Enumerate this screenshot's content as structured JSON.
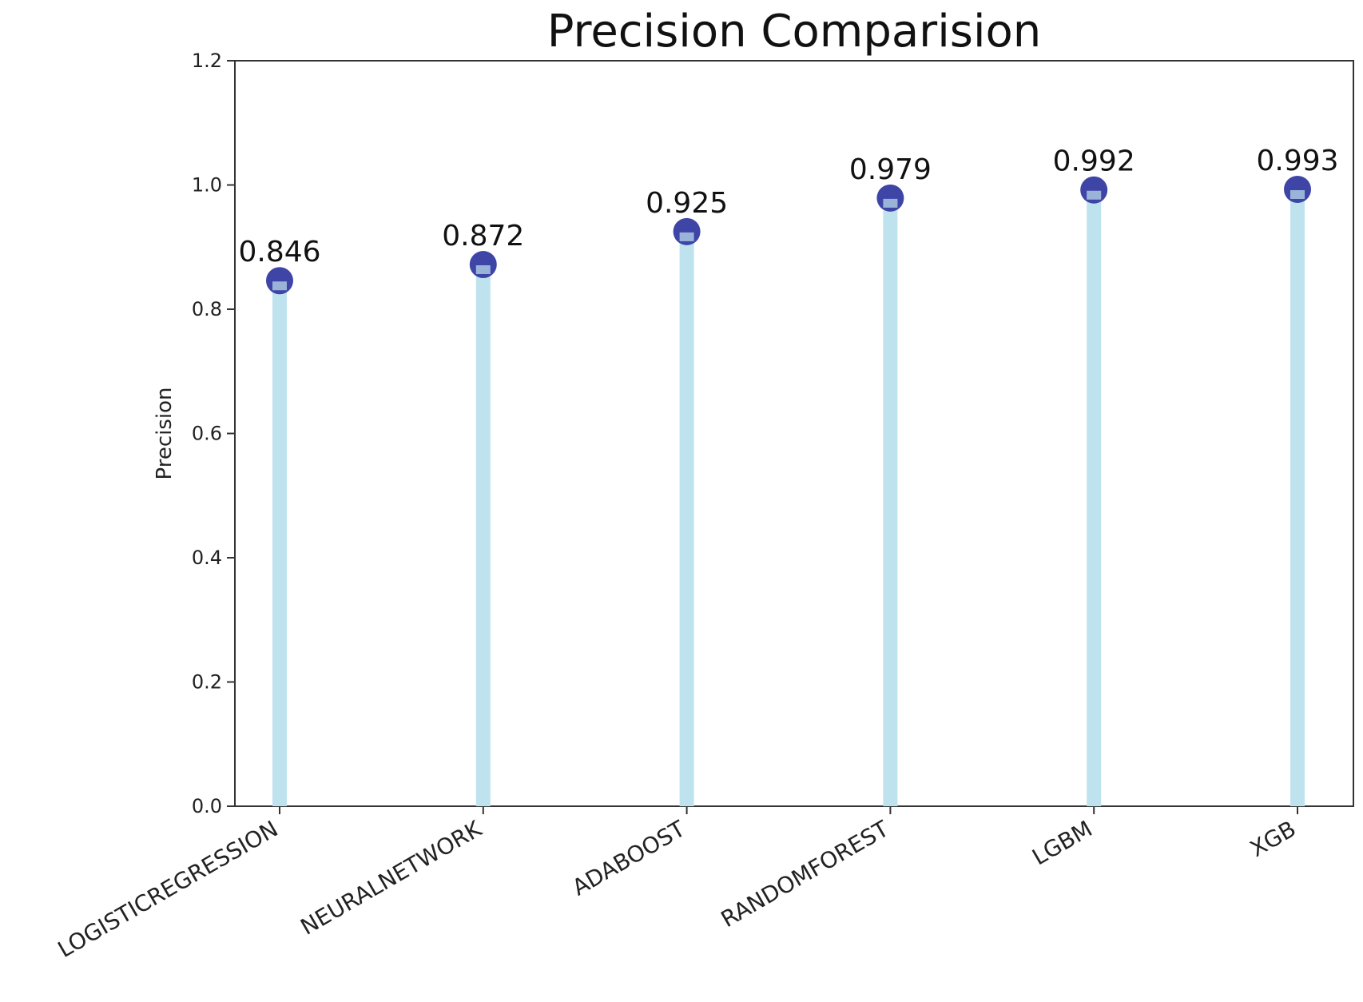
{
  "chart_data": {
    "type": "lollipop",
    "title": "Precision Comparision",
    "xlabel": "",
    "ylabel": "Precision",
    "categories": [
      "LOGISTICREGRESSION",
      "NEURALNETWORK",
      "ADABOOST",
      "RANDOMFOREST",
      "LGBM",
      "XGB"
    ],
    "values": [
      0.846,
      0.872,
      0.925,
      0.979,
      0.992,
      0.993
    ],
    "data_labels": [
      "0.846",
      "0.872",
      "0.925",
      "0.979",
      "0.992",
      "0.993"
    ],
    "ylim": [
      0,
      1.2
    ],
    "yticks": [
      0.0,
      0.2,
      0.4,
      0.6,
      0.8,
      1.0,
      1.2
    ],
    "ytick_labels": [
      "0.0",
      "0.2",
      "0.4",
      "0.6",
      "0.8",
      "1.0",
      "1.2"
    ],
    "grid": false,
    "legend": "none",
    "colors": {
      "stem": "#bfe3ee",
      "marker": "#3f45a6",
      "axis": "#333333"
    }
  }
}
